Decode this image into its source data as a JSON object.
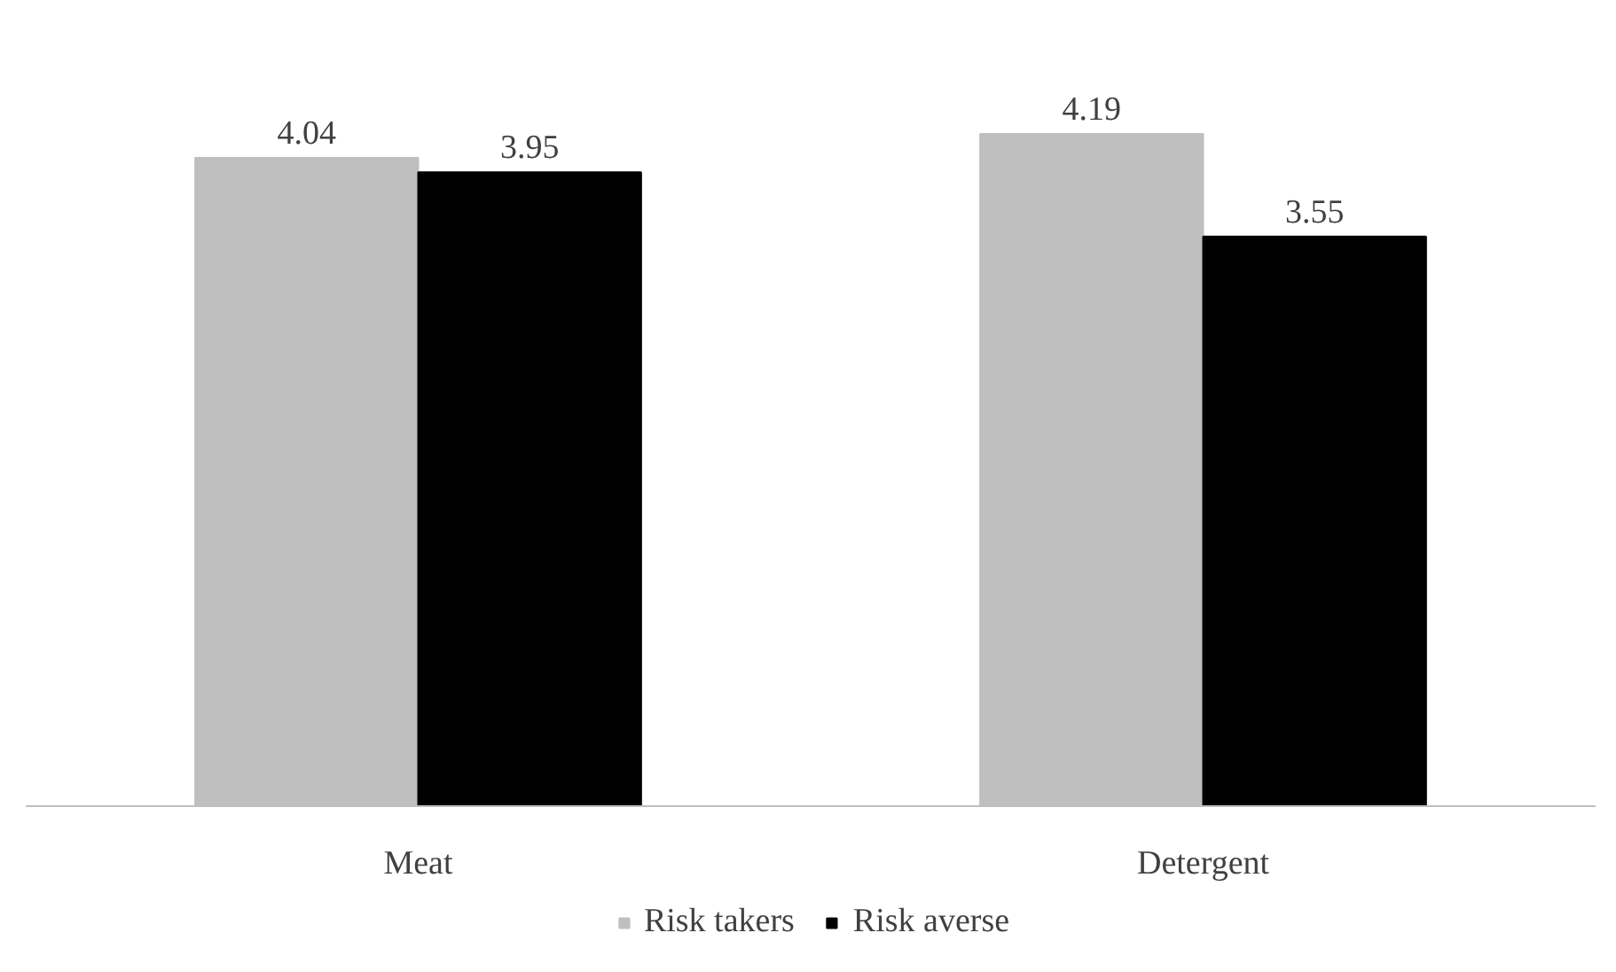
{
  "chart_data": {
    "type": "bar",
    "categories": [
      "Meat",
      "Detergent"
    ],
    "data_labels": true,
    "legend": "bottom",
    "tick_labels": "x",
    "series": [
      {
        "name": "Risk takers",
        "color": "#bfbfbf",
        "values": [
          4.04,
          4.19
        ]
      },
      {
        "name": "Risk averse",
        "color": "#000000",
        "values": [
          3.95,
          3.55
        ]
      }
    ]
  }
}
